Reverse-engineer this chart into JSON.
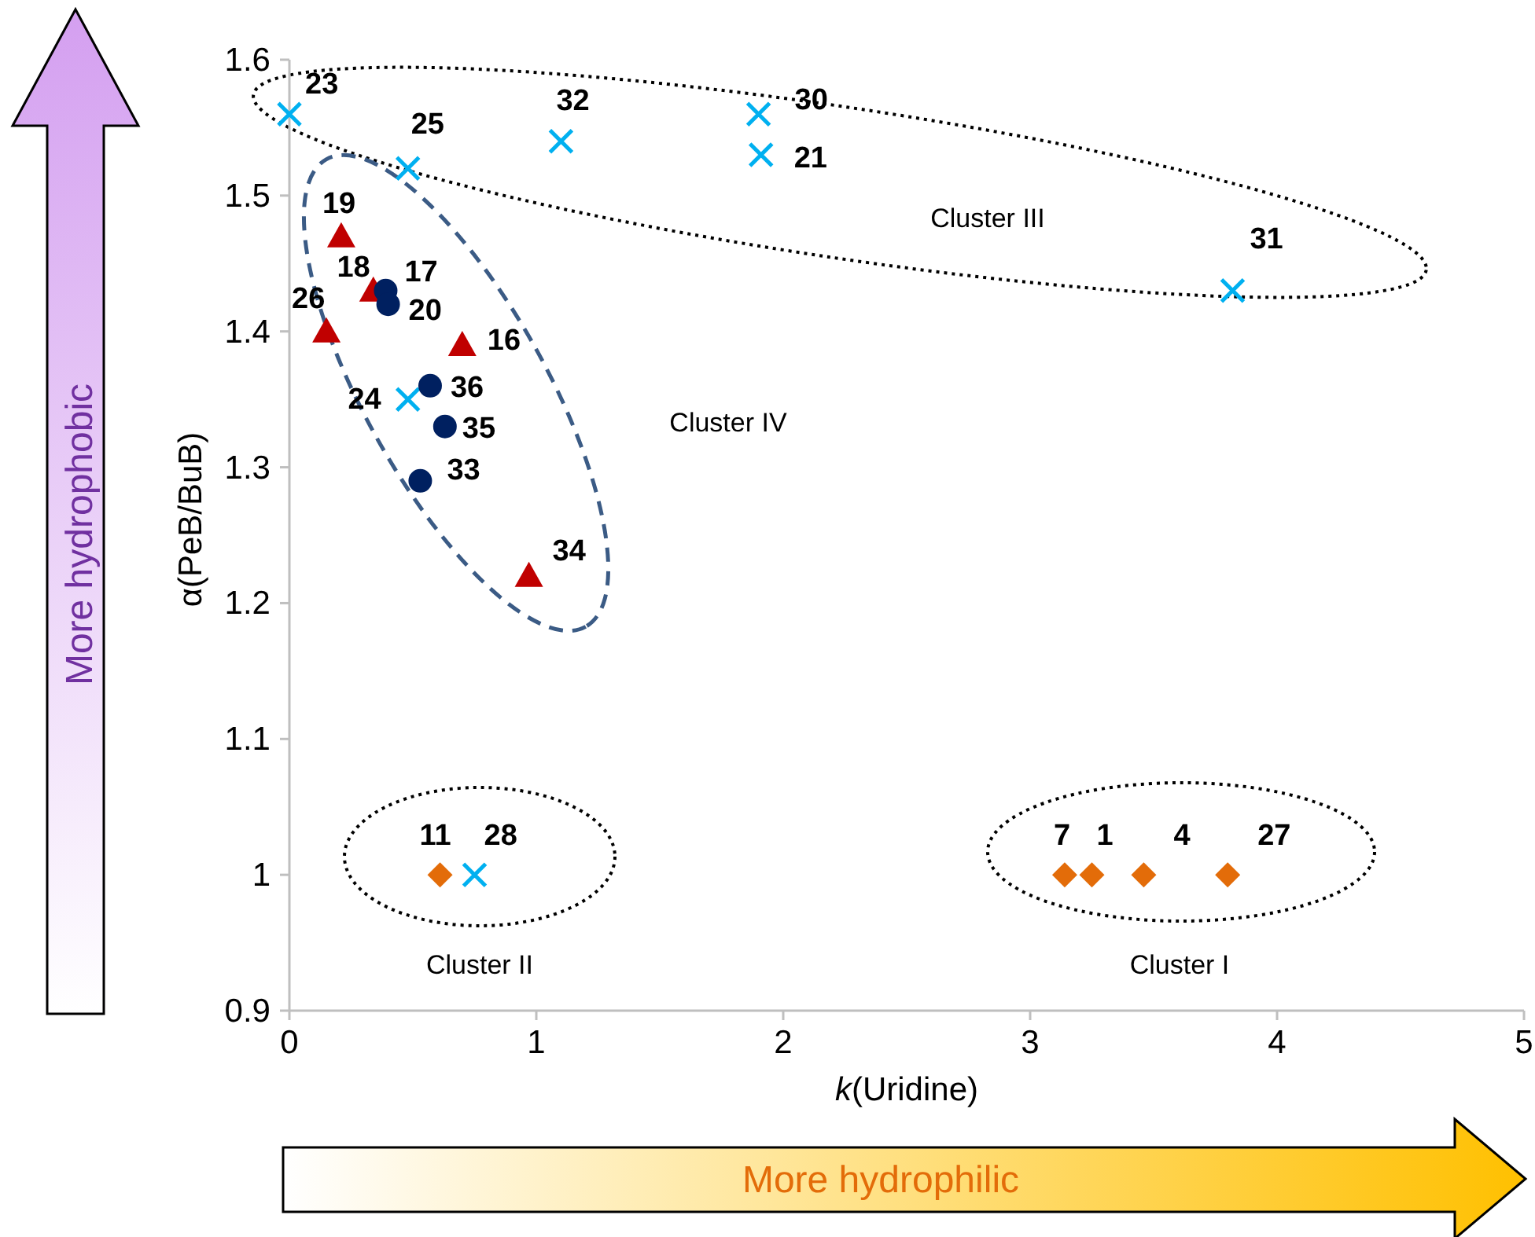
{
  "chart_data": {
    "type": "scatter",
    "xlabel": "k(Uridine)",
    "ylabel": "α(PeB/BuB)",
    "xlim": [
      0,
      5
    ],
    "ylim": [
      0.9,
      1.6
    ],
    "xticks": [
      0,
      1,
      2,
      3,
      4,
      5
    ],
    "yticks": [
      0.9,
      1,
      1.1,
      1.2,
      1.3,
      1.4,
      1.5,
      1.6
    ],
    "grid": false,
    "series": [
      {
        "color": "#00b0f0",
        "marker": "cross",
        "x": [
          0,
          0.48,
          1.1,
          1.9,
          1.91,
          3.82,
          0.48,
          0.75
        ],
        "values": [
          1.56,
          1.52,
          1.54,
          1.56,
          1.53,
          1.43,
          1.35,
          1.0
        ]
      },
      {
        "color": "#c00000",
        "marker": "triangle",
        "x": [
          0.21,
          0.34,
          0.15,
          0.7,
          0.97
        ],
        "values": [
          1.47,
          1.43,
          1.4,
          1.39,
          1.22
        ]
      },
      {
        "color": "#002060",
        "marker": "circle",
        "x": [
          0.39,
          0.4,
          0.57,
          0.63,
          0.53
        ],
        "values": [
          1.43,
          1.42,
          1.36,
          1.33,
          1.29
        ]
      },
      {
        "color": "#e36c09",
        "marker": "diamond",
        "x": [
          0.61,
          3.14,
          3.25,
          3.46,
          3.8
        ],
        "values": [
          1.0,
          1.0,
          1.0,
          1.0,
          1.0
        ]
      }
    ],
    "annotations": [
      {
        "text": "23",
        "x": 0,
        "y": 1.56
      },
      {
        "text": "25",
        "x": 0.48,
        "y": 1.52
      },
      {
        "text": "32",
        "x": 1.1,
        "y": 1.54
      },
      {
        "text": "30",
        "x": 1.9,
        "y": 1.56
      },
      {
        "text": "21",
        "x": 1.91,
        "y": 1.53
      },
      {
        "text": "31",
        "x": 3.82,
        "y": 1.43
      },
      {
        "text": "24",
        "x": 0.48,
        "y": 1.35
      },
      {
        "text": "28",
        "x": 0.75,
        "y": 1.0
      },
      {
        "text": "19",
        "x": 0.21,
        "y": 1.47
      },
      {
        "text": "18",
        "x": 0.34,
        "y": 1.43
      },
      {
        "text": "26",
        "x": 0.15,
        "y": 1.4
      },
      {
        "text": "16",
        "x": 0.7,
        "y": 1.39
      },
      {
        "text": "34",
        "x": 0.97,
        "y": 1.22
      },
      {
        "text": "17",
        "x": 0.39,
        "y": 1.43
      },
      {
        "text": "20",
        "x": 0.4,
        "y": 1.42
      },
      {
        "text": "36",
        "x": 0.57,
        "y": 1.36
      },
      {
        "text": "35",
        "x": 0.63,
        "y": 1.33
      },
      {
        "text": "33",
        "x": 0.53,
        "y": 1.29
      },
      {
        "text": "11",
        "x": 0.61,
        "y": 1.0
      },
      {
        "text": "7",
        "x": 3.14,
        "y": 1.0
      },
      {
        "text": "1",
        "x": 3.25,
        "y": 1.0
      },
      {
        "text": "4",
        "x": 3.46,
        "y": 1.0
      },
      {
        "text": "27",
        "x": 3.8,
        "y": 1.0
      },
      "Cluster III",
      "Cluster IV",
      "Cluster II",
      "Cluster I",
      "More hydrophobic",
      "More hydrophilic"
    ]
  }
}
